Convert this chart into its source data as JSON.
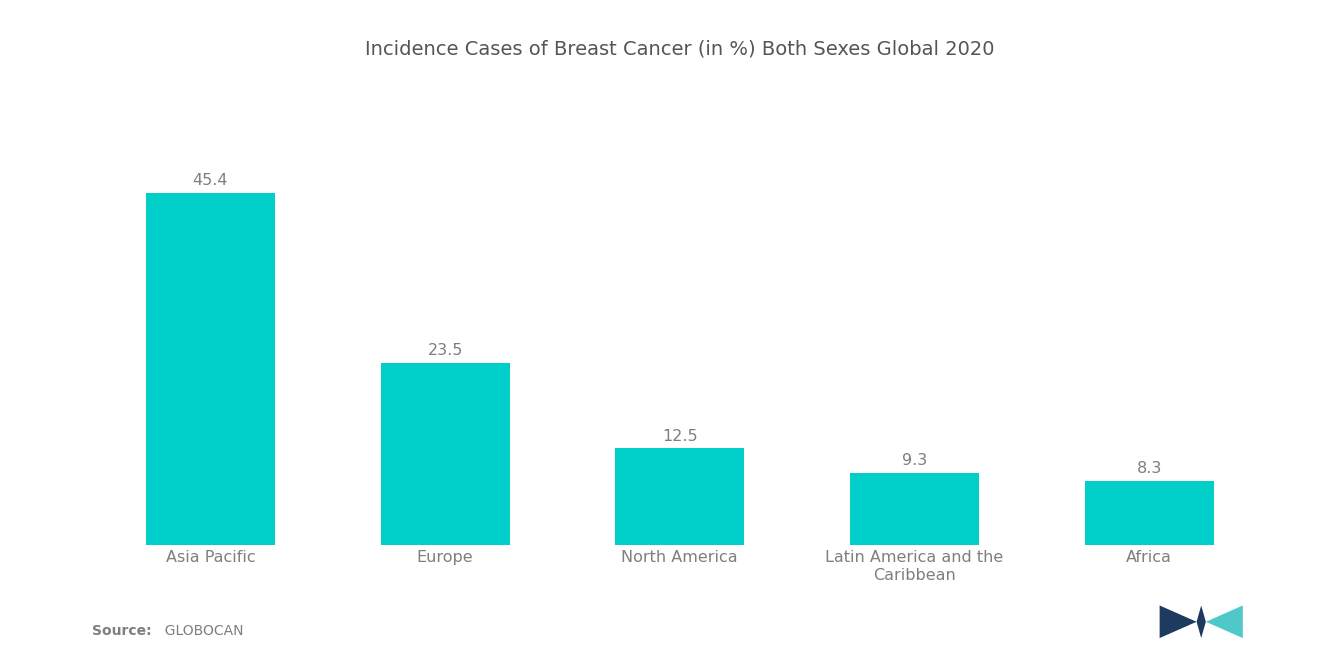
{
  "title": "Incidence Cases of Breast Cancer (in %) Both Sexes Global 2020",
  "categories": [
    "Asia Pacific",
    "Europe",
    "North America",
    "Latin America and the\nCaribbean",
    "Africa"
  ],
  "values": [
    45.4,
    23.5,
    12.5,
    9.3,
    8.3
  ],
  "bar_color": "#00CEC9",
  "background_color": "#ffffff",
  "ylim": [
    0,
    60
  ],
  "source_bold": "Source:",
  "source_rest": "  GLOBOCAN",
  "title_fontsize": 14,
  "label_fontsize": 11.5,
  "value_fontsize": 11.5,
  "bar_width": 0.55,
  "text_color": "#7f7f7f",
  "title_color": "#555555"
}
